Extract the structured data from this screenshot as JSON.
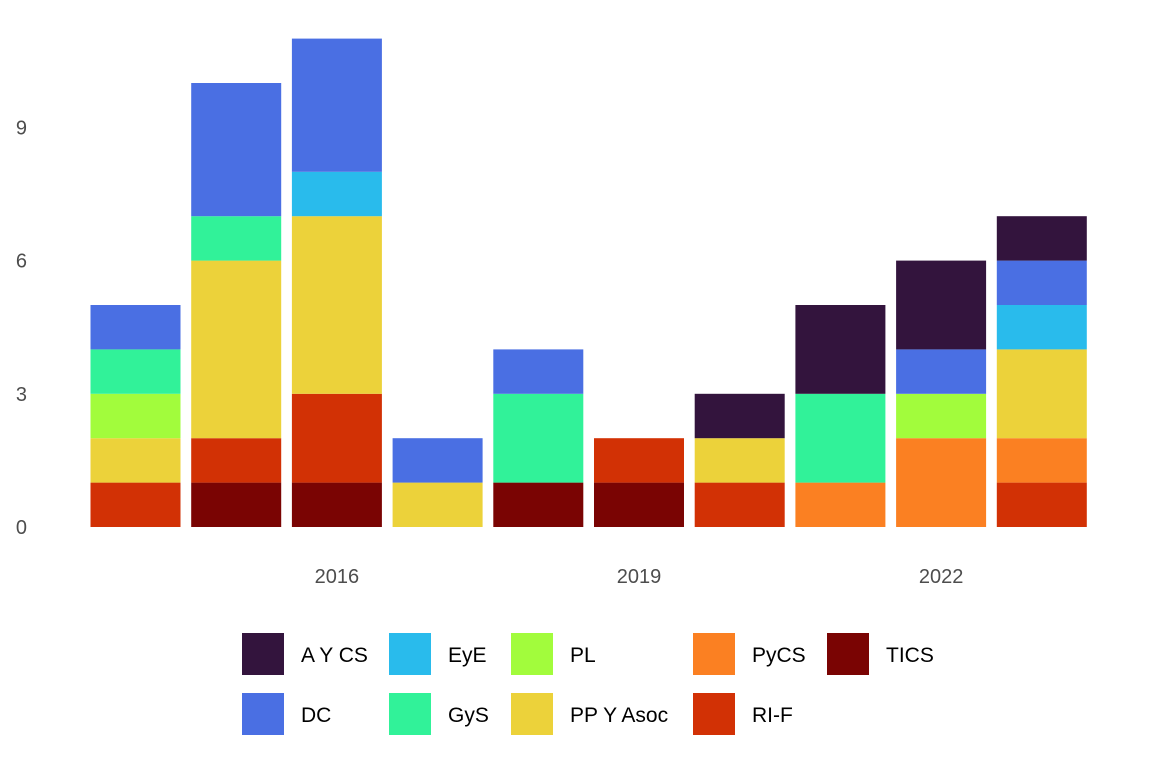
{
  "chart_data": {
    "type": "bar",
    "stacked": true,
    "title": "",
    "xlabel": "",
    "ylabel": "",
    "x": [
      2014,
      2015,
      2016,
      2017,
      2018,
      2019,
      2020,
      2021,
      2022,
      2023
    ],
    "x_ticks": [
      "2016",
      "2019",
      "2022"
    ],
    "x_tick_values": [
      2016,
      2019,
      2022
    ],
    "y_ticks": [
      "0",
      "3",
      "6",
      "9"
    ],
    "y_tick_values": [
      0,
      3,
      6,
      9
    ],
    "ylim": [
      0,
      11
    ],
    "grid": false,
    "legend_position": "bottom",
    "stack_order": [
      "TICS",
      "RI-F",
      "PyCS",
      "PP Y Asoc",
      "PL",
      "GyS",
      "EyE",
      "DC",
      "A Y CS"
    ],
    "series": [
      {
        "name": "A Y CS",
        "color": "#33143d",
        "values": [
          0,
          0,
          0,
          0,
          0,
          0,
          1,
          2,
          2,
          1
        ]
      },
      {
        "name": "DC",
        "color": "#4a6fe3",
        "values": [
          1,
          3,
          3,
          1,
          1,
          0,
          0,
          0,
          1,
          1
        ]
      },
      {
        "name": "EyE",
        "color": "#29bbec",
        "values": [
          0,
          0,
          1,
          0,
          0,
          0,
          0,
          0,
          0,
          1
        ]
      },
      {
        "name": "GyS",
        "color": "#31f299",
        "values": [
          1,
          1,
          0,
          0,
          2,
          0,
          0,
          2,
          0,
          0
        ]
      },
      {
        "name": "PL",
        "color": "#a2fc3c",
        "values": [
          1,
          0,
          0,
          0,
          0,
          0,
          0,
          0,
          1,
          0
        ]
      },
      {
        "name": "PP Y Asoc",
        "color": "#ecd23a",
        "values": [
          1,
          4,
          4,
          1,
          0,
          0,
          1,
          0,
          0,
          2
        ]
      },
      {
        "name": "PyCS",
        "color": "#fb8022",
        "values": [
          0,
          0,
          0,
          0,
          0,
          0,
          0,
          1,
          2,
          1
        ]
      },
      {
        "name": "RI-F",
        "color": "#d23105",
        "values": [
          1,
          1,
          2,
          0,
          0,
          1,
          1,
          0,
          0,
          1
        ]
      },
      {
        "name": "TICS",
        "color": "#7a0403",
        "values": [
          0,
          1,
          1,
          0,
          1,
          1,
          0,
          0,
          0,
          0
        ]
      }
    ]
  }
}
